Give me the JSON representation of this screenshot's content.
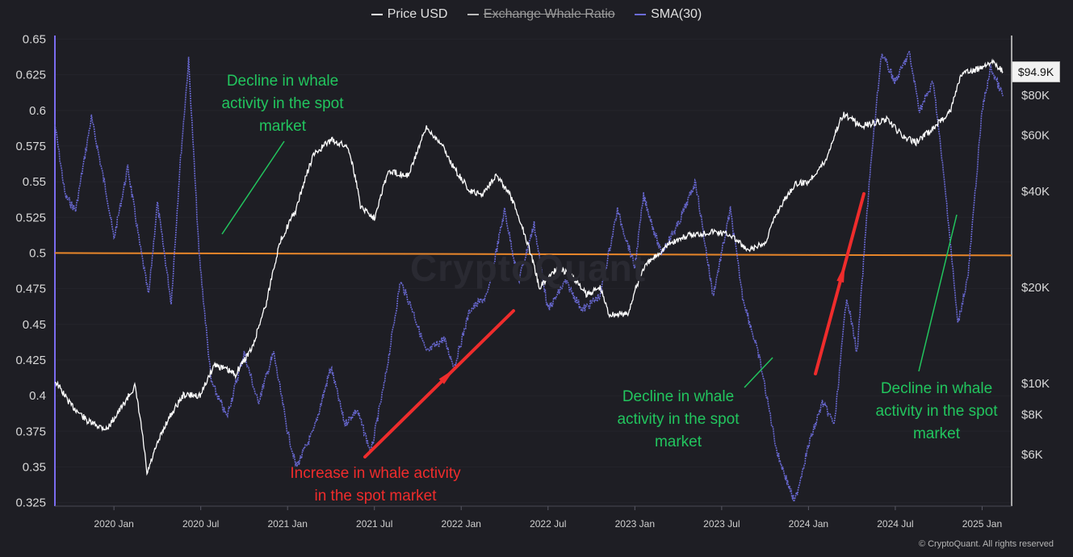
{
  "legend": {
    "price_label": "Price USD",
    "ratio_label": "Exchange Whale Ratio",
    "sma_label": "SMA(30)"
  },
  "watermark": "CryptoQuant",
  "price_tag": "$94.9K",
  "credit": "© CryptoQuant. All rights reserved",
  "annotations": {
    "top_left": [
      "Decline in whale",
      "activity in the spot",
      "market"
    ],
    "bottom_center": [
      "Increase in whale activity",
      "in the spot market"
    ],
    "bottom_right1": [
      "Decline in whale",
      "activity in the spot",
      "market"
    ],
    "bottom_right2": [
      "Decline in whale",
      "activity in the spot",
      "market"
    ]
  },
  "colors": {
    "background": "#1e1e24",
    "price": "#ffffff",
    "sma": "#6c6cd8",
    "threshold": "#e8862a",
    "annotation_green": "#22c55e",
    "annotation_red": "#ef2c2c"
  },
  "chart_data": {
    "type": "line",
    "x_ticks": [
      "2020 Jan",
      "2020 Jul",
      "2021 Jan",
      "2021 Jul",
      "2022 Jan",
      "2022 Jul",
      "2023 Jan",
      "2023 Jul",
      "2024 Jan",
      "2024 Jul",
      "2025 Jan"
    ],
    "x_range": [
      2019.66,
      2025.17
    ],
    "left_axis": {
      "ticks": [
        "0.65",
        "0.625",
        "0.6",
        "0.575",
        "0.55",
        "0.525",
        "0.5",
        "0.475",
        "0.45",
        "0.425",
        "0.4",
        "0.375",
        "0.35",
        "0.325"
      ],
      "ylim": [
        0.3225,
        0.6525
      ]
    },
    "right_axis": {
      "scale": "log",
      "ticks": [
        "$80K",
        "$60K",
        "$40K",
        "$20K",
        "$10K",
        "$8K",
        "$6K"
      ]
    },
    "threshold": 0.5,
    "series": [
      {
        "name": "Price USD",
        "axis": "right",
        "points": [
          [
            2019.66,
            10200
          ],
          [
            2019.75,
            8600
          ],
          [
            2019.85,
            7600
          ],
          [
            2019.96,
            7200
          ],
          [
            2020.05,
            8500
          ],
          [
            2020.12,
            9800
          ],
          [
            2020.19,
            5200
          ],
          [
            2020.3,
            7500
          ],
          [
            2020.4,
            9200
          ],
          [
            2020.5,
            9200
          ],
          [
            2020.58,
            11500
          ],
          [
            2020.7,
            10700
          ],
          [
            2020.8,
            13000
          ],
          [
            2020.88,
            18000
          ],
          [
            2020.96,
            28000
          ],
          [
            2021.05,
            35000
          ],
          [
            2021.15,
            52000
          ],
          [
            2021.25,
            58000
          ],
          [
            2021.35,
            55000
          ],
          [
            2021.42,
            36000
          ],
          [
            2021.5,
            33000
          ],
          [
            2021.58,
            46000
          ],
          [
            2021.7,
            45000
          ],
          [
            2021.8,
            63000
          ],
          [
            2021.88,
            57000
          ],
          [
            2021.96,
            47000
          ],
          [
            2022.05,
            40000
          ],
          [
            2022.12,
            39000
          ],
          [
            2022.2,
            45000
          ],
          [
            2022.28,
            39000
          ],
          [
            2022.36,
            30000
          ],
          [
            2022.45,
            20000
          ],
          [
            2022.55,
            23000
          ],
          [
            2022.63,
            22000
          ],
          [
            2022.72,
            19000
          ],
          [
            2022.8,
            20000
          ],
          [
            2022.85,
            16500
          ],
          [
            2022.96,
            16500
          ],
          [
            2023.05,
            23000
          ],
          [
            2023.2,
            27500
          ],
          [
            2023.3,
            29000
          ],
          [
            2023.45,
            30000
          ],
          [
            2023.55,
            29300
          ],
          [
            2023.65,
            26000
          ],
          [
            2023.75,
            27500
          ],
          [
            2023.82,
            34500
          ],
          [
            2023.92,
            42000
          ],
          [
            2024.0,
            43000
          ],
          [
            2024.1,
            50000
          ],
          [
            2024.2,
            70000
          ],
          [
            2024.3,
            64000
          ],
          [
            2024.45,
            67000
          ],
          [
            2024.55,
            59000
          ],
          [
            2024.62,
            57000
          ],
          [
            2024.72,
            63000
          ],
          [
            2024.82,
            72000
          ],
          [
            2024.88,
            93000
          ],
          [
            2024.96,
            96000
          ],
          [
            2025.05,
            102000
          ],
          [
            2025.12,
            94900
          ]
        ]
      },
      {
        "name": "SMA(30)",
        "axis": "left",
        "points": [
          [
            2019.66,
            0.59
          ],
          [
            2019.72,
            0.54
          ],
          [
            2019.78,
            0.53
          ],
          [
            2019.87,
            0.595
          ],
          [
            2019.96,
            0.54
          ],
          [
            2020.0,
            0.51
          ],
          [
            2020.08,
            0.56
          ],
          [
            2020.15,
            0.505
          ],
          [
            2020.2,
            0.47
          ],
          [
            2020.25,
            0.535
          ],
          [
            2020.33,
            0.465
          ],
          [
            2020.38,
            0.56
          ],
          [
            2020.43,
            0.635
          ],
          [
            2020.49,
            0.5
          ],
          [
            2020.56,
            0.41
          ],
          [
            2020.65,
            0.385
          ],
          [
            2020.75,
            0.43
          ],
          [
            2020.83,
            0.395
          ],
          [
            2020.92,
            0.43
          ],
          [
            2021.0,
            0.375
          ],
          [
            2021.05,
            0.35
          ],
          [
            2021.15,
            0.375
          ],
          [
            2021.25,
            0.42
          ],
          [
            2021.33,
            0.38
          ],
          [
            2021.4,
            0.39
          ],
          [
            2021.48,
            0.36
          ],
          [
            2021.56,
            0.41
          ],
          [
            2021.65,
            0.48
          ],
          [
            2021.72,
            0.46
          ],
          [
            2021.8,
            0.43
          ],
          [
            2021.9,
            0.44
          ],
          [
            2021.96,
            0.42
          ],
          [
            2022.05,
            0.46
          ],
          [
            2022.15,
            0.47
          ],
          [
            2022.25,
            0.53
          ],
          [
            2022.33,
            0.48
          ],
          [
            2022.42,
            0.52
          ],
          [
            2022.5,
            0.46
          ],
          [
            2022.6,
            0.48
          ],
          [
            2022.7,
            0.46
          ],
          [
            2022.8,
            0.47
          ],
          [
            2022.9,
            0.53
          ],
          [
            2023.0,
            0.49
          ],
          [
            2023.05,
            0.54
          ],
          [
            2023.15,
            0.5
          ],
          [
            2023.25,
            0.52
          ],
          [
            2023.35,
            0.55
          ],
          [
            2023.45,
            0.47
          ],
          [
            2023.55,
            0.53
          ],
          [
            2023.62,
            0.47
          ],
          [
            2023.72,
            0.425
          ],
          [
            2023.82,
            0.36
          ],
          [
            2023.92,
            0.325
          ],
          [
            2024.0,
            0.365
          ],
          [
            2024.08,
            0.395
          ],
          [
            2024.15,
            0.38
          ],
          [
            2024.22,
            0.47
          ],
          [
            2024.28,
            0.43
          ],
          [
            2024.35,
            0.55
          ],
          [
            2024.42,
            0.64
          ],
          [
            2024.5,
            0.62
          ],
          [
            2024.58,
            0.64
          ],
          [
            2024.64,
            0.6
          ],
          [
            2024.72,
            0.62
          ],
          [
            2024.8,
            0.53
          ],
          [
            2024.86,
            0.45
          ],
          [
            2024.92,
            0.485
          ],
          [
            2025.0,
            0.6
          ],
          [
            2025.05,
            0.63
          ],
          [
            2025.12,
            0.61
          ]
        ]
      }
    ]
  }
}
